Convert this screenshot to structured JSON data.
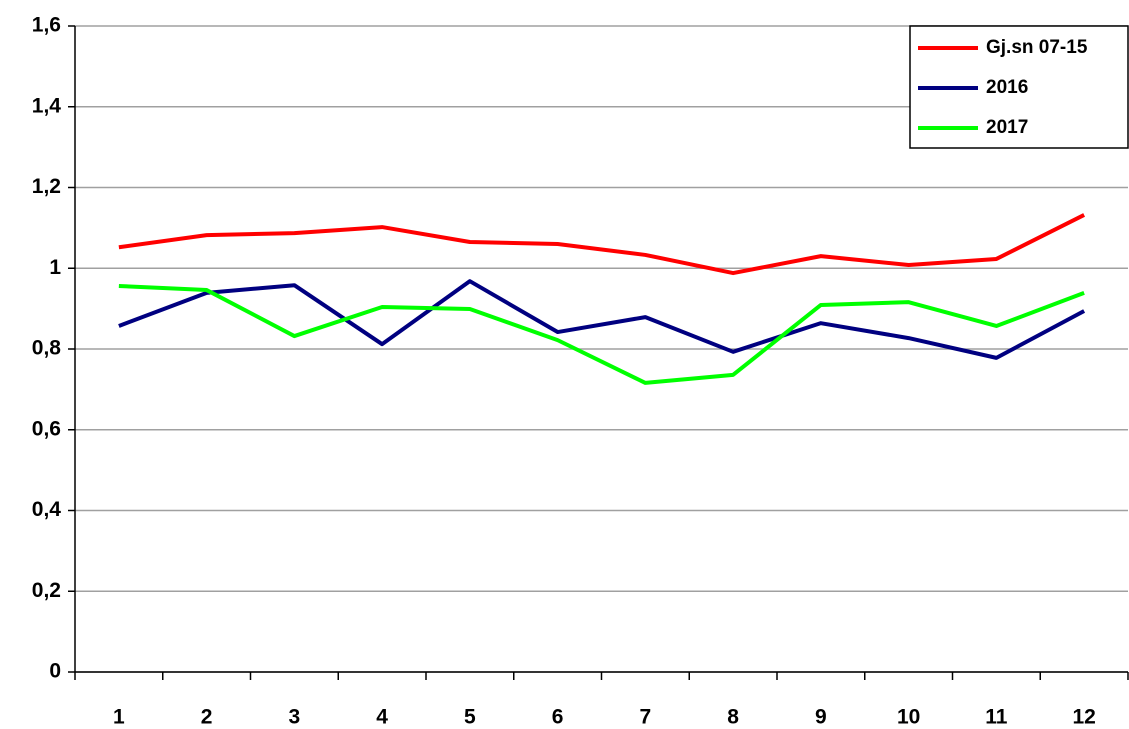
{
  "chart_data": {
    "type": "line",
    "categories": [
      "1",
      "2",
      "3",
      "4",
      "5",
      "6",
      "7",
      "8",
      "9",
      "10",
      "11",
      "12"
    ],
    "series": [
      {
        "name": "Gj.sn 07-15",
        "color": "#ff0000",
        "values": [
          1.052,
          1.082,
          1.087,
          1.102,
          1.065,
          1.06,
          1.033,
          0.988,
          1.03,
          1.008,
          1.023,
          1.132
        ]
      },
      {
        "name": "2016",
        "color": "#000080",
        "values": [
          0.857,
          0.939,
          0.958,
          0.812,
          0.968,
          0.842,
          0.879,
          0.793,
          0.864,
          0.827,
          0.778,
          0.894
        ]
      },
      {
        "name": "2017",
        "color": "#00ff00",
        "values": [
          0.956,
          0.946,
          0.832,
          0.904,
          0.899,
          0.822,
          0.716,
          0.736,
          0.909,
          0.916,
          0.857,
          0.939
        ]
      }
    ],
    "ylim": [
      0,
      1.6
    ],
    "yticks": [
      0,
      {
        "value": 0.2,
        "label": "0,2"
      },
      {
        "value": 0.4,
        "label": "0,4"
      },
      {
        "value": 0.6,
        "label": "0,6"
      },
      {
        "value": 0.8,
        "label": "0,8"
      },
      1,
      {
        "value": 1.2,
        "label": "1,2"
      },
      {
        "value": 1.4,
        "label": "1,4"
      },
      {
        "value": 1.6,
        "label": "1,6"
      }
    ],
    "grid": true,
    "legend": "top-right"
  }
}
